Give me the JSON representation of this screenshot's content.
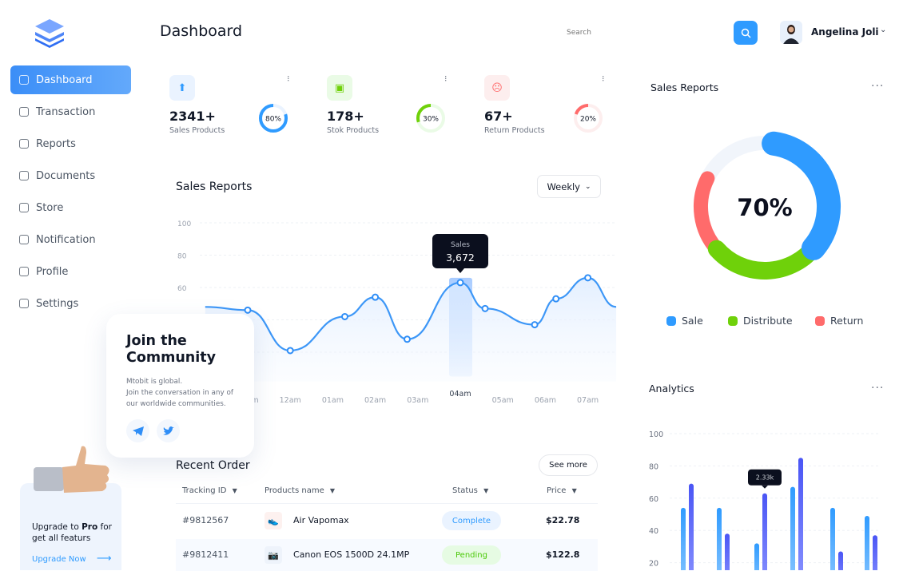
{
  "header": {
    "title": "Dashboard",
    "search_placeholder": "Search",
    "user_name": "Angelina Joli"
  },
  "sidebar": {
    "items": [
      {
        "label": "Dashboard",
        "active": true,
        "icon": "grid-icon"
      },
      {
        "label": "Transaction",
        "icon": "chart-file-icon"
      },
      {
        "label": "Reports",
        "icon": "pie-icon"
      },
      {
        "label": "Documents",
        "icon": "document-icon"
      },
      {
        "label": "Store",
        "icon": "bag-icon"
      },
      {
        "label": "Notification",
        "icon": "bell-icon"
      },
      {
        "label": "Profile",
        "icon": "user-icon"
      },
      {
        "label": "Settings",
        "icon": "gear-icon"
      }
    ],
    "upgrade": {
      "text_pre": "Upgrade to ",
      "text_bold": "Pro",
      "text_post": " for get all featurs",
      "link": "Upgrade Now"
    }
  },
  "stats": [
    {
      "value": "2341+",
      "label": "Sales Products",
      "percent": 80,
      "percent_label": "80%",
      "color": "#2f9bff",
      "bg": "#eaf3ff",
      "icon": "shopping-bag-icon"
    },
    {
      "value": "178+",
      "label": "Stok Products",
      "percent": 30,
      "percent_label": "30%",
      "color": "#6fd10a",
      "bg": "#eafbe6",
      "icon": "box-icon"
    },
    {
      "value": "67+",
      "label": "Return Products",
      "percent": 20,
      "percent_label": "20%",
      "color": "#ff6b6b",
      "bg": "#fdeeee",
      "icon": "sad-face-icon"
    }
  ],
  "sales_chart": {
    "title": "Sales Reports",
    "filter": "Weekly",
    "tooltip_label": "Sales",
    "tooltip_value": "3,672"
  },
  "community": {
    "title": "Join the Community",
    "text1": "Mtobit is global.",
    "text2": "Join the conversation in any of our worldwide communities."
  },
  "orders": {
    "title": "Recent Order",
    "see_more": "See more",
    "columns": [
      "Tracking ID",
      "Products name",
      "Status",
      "Price"
    ],
    "rows": [
      {
        "id": "#9812567",
        "product": "Air Vapomax",
        "status": "Complete",
        "price": "$22.78"
      },
      {
        "id": "#9812411",
        "product": "Canon EOS 1500D 24.1MP",
        "status": "Pending",
        "price": "$122.8"
      }
    ]
  },
  "right_sales": {
    "title": "Sales Reports",
    "center": "70%",
    "legend": [
      "Sale",
      "Distribute",
      "Return"
    ]
  },
  "analytics": {
    "title": "Analytics",
    "tooltip": "2.33k"
  },
  "colors": {
    "accent": "#2f9bff",
    "green": "#6fd10a",
    "red": "#ff6b6b",
    "indigo": "#4a55f5"
  },
  "chart_data": [
    {
      "type": "line",
      "title": "Sales Reports",
      "ylim": [
        0,
        100
      ],
      "yticks": [
        60,
        80,
        100
      ],
      "xticks": [
        "11pm",
        "12am",
        "01am",
        "02am",
        "03am",
        "04am",
        "05am",
        "06am",
        "07am"
      ],
      "points": [
        {
          "x": "22:00",
          "y": 48
        },
        {
          "x": "23:00",
          "y": 46
        },
        {
          "x": "00:00",
          "y": 21
        },
        {
          "x": "01:17",
          "y": 42
        },
        {
          "x": "02:00",
          "y": 54
        },
        {
          "x": "02:45",
          "y": 28
        },
        {
          "x": "04:00",
          "y": 63
        },
        {
          "x": "04:35",
          "y": 47
        },
        {
          "x": "05:45",
          "y": 37
        },
        {
          "x": "06:15",
          "y": 53
        },
        {
          "x": "07:00",
          "y": 66
        },
        {
          "x": "07:40",
          "y": 48
        }
      ],
      "highlight": "04am",
      "grid": true
    },
    {
      "type": "pie",
      "title": "Sales Reports",
      "center_label": "70%",
      "slices": [
        {
          "name": "Sale",
          "value": 34,
          "color": "#2f9bff"
        },
        {
          "name": "Distribute",
          "value": 28,
          "color": "#6fd10a"
        },
        {
          "name": "Return",
          "value": 19,
          "color": "#ff6b6b"
        }
      ]
    },
    {
      "type": "bar",
      "title": "Analytics",
      "yticks": [
        20,
        40,
        60,
        80,
        100
      ],
      "ylim": [
        0,
        100
      ],
      "series": [
        {
          "values": [
            54,
            54,
            32,
            67,
            54,
            49
          ],
          "color": "#2f9bff"
        },
        {
          "values": [
            69,
            38,
            63,
            85,
            27,
            37
          ],
          "color": "#4a55f5"
        }
      ],
      "tooltip": {
        "group": 3,
        "series": 2,
        "label": "2.33k"
      },
      "grid": true
    }
  ]
}
